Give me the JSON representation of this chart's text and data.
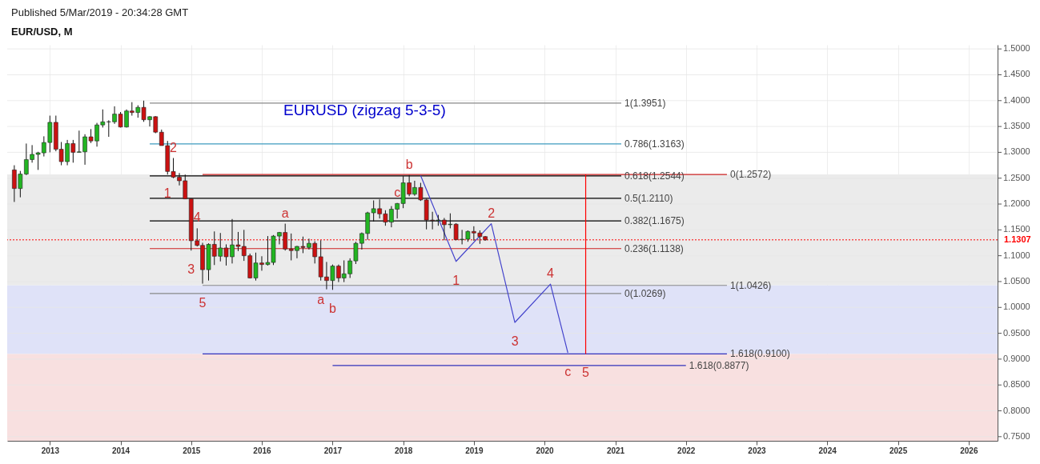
{
  "chart_data": {
    "type": "candlestick",
    "title": "EUR/USD, M",
    "subtitle": "EURUSD   (zigzag 5-3-5)",
    "x": [
      "2012-07",
      "2012-08",
      "2012-09",
      "2012-10",
      "2012-11",
      "2012-12",
      "2013-01",
      "2013-02",
      "2013-03",
      "2013-04",
      "2013-05",
      "2013-06",
      "2013-07",
      "2013-08",
      "2013-09",
      "2013-10",
      "2013-11",
      "2013-12",
      "2014-01",
      "2014-02",
      "2014-03",
      "2014-04",
      "2014-05",
      "2014-06",
      "2014-07",
      "2014-08",
      "2014-09",
      "2014-10",
      "2014-11",
      "2014-12",
      "2015-01",
      "2015-02",
      "2015-03",
      "2015-04",
      "2015-05",
      "2015-06",
      "2015-07",
      "2015-08",
      "2015-09",
      "2015-10",
      "2015-11",
      "2015-12",
      "2016-01",
      "2016-02",
      "2016-03",
      "2016-04",
      "2016-05",
      "2016-06",
      "2016-07",
      "2016-08",
      "2016-09",
      "2016-10",
      "2016-11",
      "2016-12",
      "2017-01",
      "2017-02",
      "2017-03",
      "2017-04",
      "2017-05",
      "2017-06",
      "2017-07",
      "2017-08",
      "2017-09",
      "2017-10",
      "2017-11",
      "2017-12",
      "2018-01",
      "2018-02",
      "2018-03",
      "2018-04",
      "2018-05",
      "2018-06",
      "2018-07",
      "2018-08",
      "2018-09",
      "2018-10",
      "2018-11",
      "2018-12",
      "2019-01",
      "2019-02",
      "2019-03"
    ],
    "ohlc": [
      [
        1.266,
        1.275,
        1.204,
        1.23
      ],
      [
        1.23,
        1.264,
        1.213,
        1.258
      ],
      [
        1.258,
        1.317,
        1.256,
        1.286
      ],
      [
        1.286,
        1.314,
        1.28,
        1.296
      ],
      [
        1.296,
        1.301,
        1.266,
        1.299
      ],
      [
        1.299,
        1.331,
        1.292,
        1.319
      ],
      [
        1.319,
        1.371,
        1.3,
        1.358
      ],
      [
        1.358,
        1.371,
        1.302,
        1.306
      ],
      [
        1.306,
        1.32,
        1.275,
        1.282
      ],
      [
        1.282,
        1.324,
        1.275,
        1.317
      ],
      [
        1.317,
        1.324,
        1.28,
        1.3
      ],
      [
        1.3,
        1.342,
        1.3,
        1.301
      ],
      [
        1.301,
        1.335,
        1.276,
        1.33
      ],
      [
        1.33,
        1.345,
        1.318,
        1.322
      ],
      [
        1.322,
        1.357,
        1.311,
        1.353
      ],
      [
        1.353,
        1.383,
        1.348,
        1.359
      ],
      [
        1.359,
        1.362,
        1.33,
        1.359
      ],
      [
        1.359,
        1.389,
        1.355,
        1.374
      ],
      [
        1.374,
        1.378,
        1.348,
        1.349
      ],
      [
        1.349,
        1.383,
        1.348,
        1.38
      ],
      [
        1.38,
        1.397,
        1.371,
        1.377
      ],
      [
        1.377,
        1.391,
        1.367,
        1.387
      ],
      [
        1.387,
        1.4,
        1.359,
        1.363
      ],
      [
        1.363,
        1.37,
        1.35,
        1.369
      ],
      [
        1.369,
        1.37,
        1.337,
        1.339
      ],
      [
        1.339,
        1.344,
        1.313,
        1.313
      ],
      [
        1.313,
        1.322,
        1.257,
        1.263
      ],
      [
        1.263,
        1.289,
        1.25,
        1.252
      ],
      [
        1.252,
        1.26,
        1.236,
        1.245
      ],
      [
        1.245,
        1.257,
        1.21,
        1.21
      ],
      [
        1.21,
        1.21,
        1.11,
        1.129
      ],
      [
        1.129,
        1.153,
        1.118,
        1.12
      ],
      [
        1.12,
        1.125,
        1.046,
        1.073
      ],
      [
        1.073,
        1.124,
        1.052,
        1.122
      ],
      [
        1.122,
        1.147,
        1.082,
        1.099
      ],
      [
        1.099,
        1.144,
        1.089,
        1.115
      ],
      [
        1.115,
        1.122,
        1.081,
        1.098
      ],
      [
        1.098,
        1.171,
        1.085,
        1.121
      ],
      [
        1.121,
        1.146,
        1.109,
        1.118
      ],
      [
        1.118,
        1.15,
        1.09,
        1.1
      ],
      [
        1.1,
        1.104,
        1.056,
        1.057
      ],
      [
        1.057,
        1.106,
        1.052,
        1.086
      ],
      [
        1.086,
        1.099,
        1.071,
        1.083
      ],
      [
        1.083,
        1.138,
        1.081,
        1.087
      ],
      [
        1.087,
        1.14,
        1.082,
        1.138
      ],
      [
        1.138,
        1.146,
        1.122,
        1.145
      ],
      [
        1.145,
        1.162,
        1.11,
        1.113
      ],
      [
        1.113,
        1.143,
        1.091,
        1.11
      ],
      [
        1.11,
        1.119,
        1.095,
        1.118
      ],
      [
        1.118,
        1.137,
        1.105,
        1.116
      ],
      [
        1.116,
        1.133,
        1.112,
        1.124
      ],
      [
        1.124,
        1.128,
        1.085,
        1.098
      ],
      [
        1.098,
        1.13,
        1.052,
        1.059
      ],
      [
        1.059,
        1.088,
        1.035,
        1.052
      ],
      [
        1.052,
        1.083,
        1.034,
        1.08
      ],
      [
        1.08,
        1.083,
        1.049,
        1.057
      ],
      [
        1.057,
        1.091,
        1.049,
        1.065
      ],
      [
        1.065,
        1.095,
        1.057,
        1.09
      ],
      [
        1.09,
        1.127,
        1.084,
        1.124
      ],
      [
        1.124,
        1.145,
        1.112,
        1.143
      ],
      [
        1.143,
        1.185,
        1.131,
        1.183
      ],
      [
        1.183,
        1.207,
        1.166,
        1.191
      ],
      [
        1.191,
        1.209,
        1.172,
        1.181
      ],
      [
        1.181,
        1.188,
        1.158,
        1.165
      ],
      [
        1.165,
        1.196,
        1.155,
        1.19
      ],
      [
        1.19,
        1.202,
        1.172,
        1.201
      ],
      [
        1.201,
        1.254,
        1.192,
        1.241
      ],
      [
        1.241,
        1.256,
        1.215,
        1.219
      ],
      [
        1.219,
        1.245,
        1.216,
        1.232
      ],
      [
        1.232,
        1.241,
        1.206,
        1.208
      ],
      [
        1.208,
        1.21,
        1.151,
        1.169
      ],
      [
        1.169,
        1.185,
        1.151,
        1.168
      ],
      [
        1.168,
        1.179,
        1.158,
        1.169
      ],
      [
        1.169,
        1.173,
        1.13,
        1.16
      ],
      [
        1.16,
        1.182,
        1.153,
        1.161
      ],
      [
        1.161,
        1.163,
        1.13,
        1.131
      ],
      [
        1.131,
        1.15,
        1.122,
        1.132
      ],
      [
        1.132,
        1.149,
        1.127,
        1.147
      ],
      [
        1.147,
        1.157,
        1.129,
        1.144
      ],
      [
        1.144,
        1.149,
        1.123,
        1.137
      ],
      [
        1.137,
        1.138,
        1.129,
        1.1307
      ]
    ],
    "series": [
      {
        "type": "line",
        "color": "#888888",
        "x": [
          "2014-06",
          "2021-02"
        ],
        "values": [
          1.3951,
          1.3951
        ]
      },
      {
        "type": "line",
        "color": "#3d9bbf",
        "x": [
          "2014-06",
          "2021-02"
        ],
        "values": [
          1.3163,
          1.3163
        ]
      },
      {
        "type": "line",
        "color": "#000000",
        "x": [
          "2014-06",
          "2021-02"
        ],
        "values": [
          1.2544,
          1.2544
        ]
      },
      {
        "type": "line",
        "color": "#cc2222",
        "x": [
          "2015-03",
          "2022-08"
        ],
        "values": [
          1.2572,
          1.2572
        ]
      },
      {
        "type": "line",
        "color": "#000000",
        "x": [
          "2014-06",
          "2021-02"
        ],
        "values": [
          1.211,
          1.211
        ]
      },
      {
        "type": "line",
        "color": "#000000",
        "x": [
          "2014-06",
          "2021-02"
        ],
        "values": [
          1.1675,
          1.1675
        ]
      },
      {
        "type": "line",
        "color": "#cc2222",
        "x": [
          "2014-06",
          "2021-02"
        ],
        "values": [
          1.1138,
          1.1138
        ]
      },
      {
        "type": "line",
        "color": "#888888",
        "x": [
          "2014-06",
          "2021-02"
        ],
        "values": [
          1.0269,
          1.0269
        ]
      },
      {
        "type": "line",
        "color": "#888888",
        "x": [
          "2015-03",
          "2022-08"
        ],
        "values": [
          1.0426,
          1.0426
        ]
      },
      {
        "type": "line",
        "color": "#3333bb",
        "x": [
          "2015-03",
          "2022-08"
        ],
        "values": [
          0.91,
          0.91
        ]
      },
      {
        "type": "line",
        "color": "#3333bb",
        "x": [
          "2017-01",
          "2022-01"
        ],
        "values": [
          0.8877,
          0.8877
        ]
      },
      {
        "type": "line",
        "color": "#4444cc",
        "x": [
          "2018-04",
          "2018-10",
          "2019-04",
          "2019-08",
          "2020-02",
          "2020-05"
        ],
        "values": [
          1.255,
          1.089,
          1.162,
          0.971,
          1.045,
          0.912
        ]
      },
      {
        "type": "line",
        "color": "#ff0000",
        "x": [
          "2020-08",
          "2020-08"
        ],
        "values": [
          1.2572,
          0.91
        ]
      }
    ],
    "ref_lines": [
      {
        "axis": "y",
        "value": 1.1307,
        "label": "1.1307",
        "color": "#ff0000",
        "line_style": "dotted"
      }
    ],
    "bands": [
      {
        "axis": "y",
        "from": 1.0426,
        "to": 1.2572,
        "color": "#ebebeb"
      },
      {
        "axis": "y",
        "from": 0.91,
        "to": 1.0426,
        "color": "#dfe2f8"
      },
      {
        "axis": "y",
        "from": 0.742,
        "to": 0.91,
        "color": "#f8e0e0"
      }
    ],
    "annotations": [
      "Published 5/Mar/2019 - 20:34:28 GMT",
      {
        "text": "1(1.3951)",
        "x": "2021-02",
        "y": 1.3951
      },
      {
        "text": "0.786(1.3163)",
        "x": "2021-02",
        "y": 1.3163
      },
      {
        "text": "0.618(1.2544)",
        "x": "2021-02",
        "y": 1.2544
      },
      {
        "text": "0(1.2572)",
        "x": "2022-08",
        "y": 1.2572
      },
      {
        "text": "0.5(1.2110)",
        "x": "2021-02",
        "y": 1.211
      },
      {
        "text": "0.382(1.1675)",
        "x": "2021-02",
        "y": 1.1675
      },
      {
        "text": "0.236(1.1138)",
        "x": "2021-02",
        "y": 1.1138
      },
      {
        "text": "0(1.0269)",
        "x": "2021-02",
        "y": 1.0269
      },
      {
        "text": "1(1.0426)",
        "x": "2022-08",
        "y": 1.0426
      },
      {
        "text": "1.618(0.9100)",
        "x": "2022-08",
        "y": 0.91
      },
      {
        "text": "1.618(0.8877)",
        "x": "2022-01",
        "y": 0.8877
      },
      {
        "text": "2",
        "x": "2014-10",
        "y": 1.289
      },
      {
        "text": "1",
        "x": "2014-09",
        "y": 1.257
      },
      {
        "text": "4",
        "x": "2015-02",
        "y": 1.153
      },
      {
        "text": "3",
        "x": "2015-01",
        "y": 1.11
      },
      {
        "text": "5",
        "x": "2015-03",
        "y": 1.046
      },
      {
        "text": "a",
        "x": "2016-05",
        "y": 1.162
      },
      {
        "text": "a",
        "x": "2016-11",
        "y": 1.052
      },
      {
        "text": "b",
        "x": "2017-01",
        "y": 1.034
      },
      {
        "text": "c",
        "x": "2017-12",
        "y": 1.202
      },
      {
        "text": "b",
        "x": "2018-02",
        "y": 1.256
      },
      {
        "text": "1",
        "x": "2018-10",
        "y": 1.089
      },
      {
        "text": "2",
        "x": "2019-04",
        "y": 1.162
      },
      {
        "text": "3",
        "x": "2019-08",
        "y": 0.971
      },
      {
        "text": "4",
        "x": "2020-02",
        "y": 1.045
      },
      {
        "text": "5",
        "x": "2020-08",
        "y": 0.91
      },
      {
        "text": "c",
        "x": "2020-05",
        "y": 0.912
      }
    ],
    "xlim": [
      "2012-06-15",
      "2026-05-10"
    ],
    "xticks": [
      "2013",
      "2014",
      "2015",
      "2016",
      "2017",
      "2018",
      "2019",
      "2020",
      "2021",
      "2022",
      "2023",
      "2024",
      "2025",
      "2026"
    ],
    "ylim": [
      0.742,
      1.508
    ],
    "yticks": [
      {
        "value": 0.75,
        "label": "0.7500"
      },
      {
        "value": 0.8,
        "label": "0.8000"
      },
      {
        "value": 0.85,
        "label": "0.8500"
      },
      {
        "value": 0.9,
        "label": "0.9000"
      },
      {
        "value": 0.95,
        "label": "0.9500"
      },
      {
        "value": 1.0,
        "label": "1.0000"
      },
      {
        "value": 1.05,
        "label": "1.0500"
      },
      {
        "value": 1.1,
        "label": "1.1000"
      },
      {
        "value": 1.15,
        "label": "1.1500"
      },
      {
        "value": 1.2,
        "label": "1.2000"
      },
      {
        "value": 1.25,
        "label": "1.2500"
      },
      {
        "value": 1.3,
        "label": "1.3000"
      },
      {
        "value": 1.35,
        "label": "1.3500"
      },
      {
        "value": 1.4,
        "label": "1.4000"
      },
      {
        "value": 1.45,
        "label": "1.4500"
      },
      {
        "value": 1.5,
        "label": "1.5000"
      }
    ],
    "grid": true
  }
}
